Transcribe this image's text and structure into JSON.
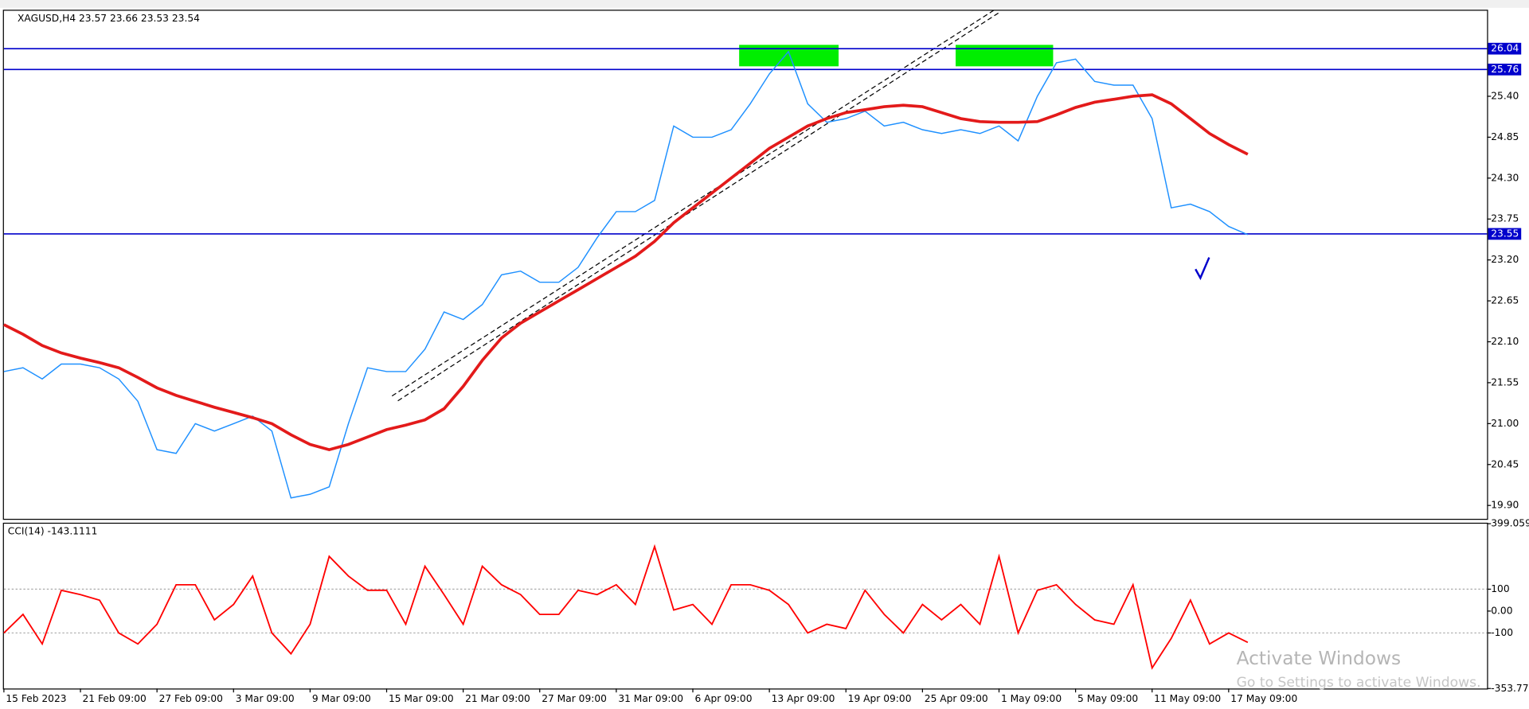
{
  "chart_data": [
    {
      "type": "line",
      "title": "XAGUSD,H4  23.57 23.66 23.53 23.54",
      "categories": [
        "15 Feb 2023",
        null,
        null,
        null,
        "21 Feb 09:00",
        null,
        null,
        null,
        "27 Feb 09:00",
        null,
        null,
        null,
        "3 Mar 09:00",
        null,
        null,
        null,
        "9 Mar 09:00",
        null,
        null,
        null,
        "15 Mar 09:00",
        null,
        null,
        null,
        "21 Mar 09:00",
        null,
        null,
        null,
        "27 Mar 09:00",
        null,
        null,
        null,
        "31 Mar 09:00",
        null,
        null,
        null,
        "6 Apr 09:00",
        null,
        null,
        null,
        "13 Apr 09:00",
        null,
        null,
        null,
        "19 Apr 09:00",
        null,
        null,
        null,
        "25 Apr 09:00",
        null,
        null,
        null,
        "1 May 09:00",
        null,
        null,
        null,
        "5 May 09:00",
        null,
        null,
        null,
        "11 May 09:00",
        null,
        null,
        null,
        "17 May 09:00",
        null
      ],
      "series": [
        {
          "color": "#1e90ff",
          "values": [
            21.7,
            21.75,
            21.6,
            21.8,
            21.8,
            21.75,
            21.6,
            21.3,
            20.65,
            20.6,
            21.0,
            20.9,
            21.0,
            21.1,
            20.9,
            20.0,
            20.05,
            20.15,
            21.0,
            21.75,
            21.7,
            21.7,
            22.0,
            22.5,
            22.4,
            22.6,
            23.0,
            23.05,
            22.9,
            22.9,
            23.1,
            23.5,
            23.85,
            23.85,
            24.0,
            25.0,
            24.85,
            24.85,
            24.95,
            25.3,
            25.7,
            26.0,
            25.3,
            25.05,
            25.1,
            25.2,
            25.0,
            25.05,
            24.95,
            24.9,
            24.95,
            24.9,
            25.0,
            24.8,
            25.4,
            25.85,
            25.9,
            25.6,
            25.55,
            25.55,
            25.1,
            23.9,
            23.95,
            23.85,
            23.65,
            23.54
          ]
        },
        {
          "color": "#e31a1a",
          "values": [
            22.33,
            22.2,
            22.05,
            21.95,
            21.88,
            21.82,
            21.75,
            21.62,
            21.48,
            21.38,
            21.3,
            21.22,
            21.15,
            21.08,
            21.0,
            20.85,
            20.72,
            20.65,
            20.72,
            20.82,
            20.92,
            20.98,
            21.05,
            21.2,
            21.5,
            21.85,
            22.15,
            22.35,
            22.5,
            22.65,
            22.8,
            22.95,
            23.1,
            23.25,
            23.45,
            23.7,
            23.9,
            24.1,
            24.3,
            24.5,
            24.7,
            24.85,
            25.0,
            25.1,
            25.18,
            25.22,
            25.26,
            25.28,
            25.26,
            25.18,
            25.1,
            25.06,
            25.05,
            25.05,
            25.06,
            25.15,
            25.25,
            25.32,
            25.36,
            25.4,
            25.42,
            25.3,
            25.1,
            24.9,
            24.75,
            24.62
          ]
        }
      ],
      "hlines": [
        26.04,
        25.76,
        23.55
      ],
      "hline_color": "#0000cc",
      "ylim": [
        19.72,
        26.55
      ],
      "yticks": [
        {
          "value": 25.4,
          "label": "25.40"
        },
        24.85,
        {
          "value": 24.3,
          "label": "24.30"
        },
        23.75,
        {
          "value": 23.2,
          "label": "23.20"
        },
        22.65,
        {
          "value": 22.1,
          "label": "22.10"
        },
        21.55,
        {
          "value": 21,
          "label": "21.00"
        },
        20.45,
        {
          "value": 19.9,
          "label": "19.90"
        }
      ]
    },
    {
      "type": "line",
      "title": "CCI(14) -143.1111",
      "series": [
        {
          "color": "#ff0000",
          "values": [
            -100,
            -15,
            -150,
            95,
            75,
            50,
            -100,
            -150,
            -60,
            120,
            120,
            -40,
            30,
            160,
            -100,
            -195,
            -60,
            250,
            160,
            95,
            95,
            -60,
            205,
            75,
            -60,
            205,
            120,
            75,
            -15,
            -15,
            95,
            75,
            120,
            30,
            295,
            5,
            30,
            -60,
            120,
            120,
            95,
            30,
            -100,
            -60,
            -80,
            95,
            -15,
            -100,
            30,
            -40,
            30,
            -60,
            250,
            -100,
            95,
            120,
            30,
            -40,
            -60,
            120,
            -260,
            -125,
            50,
            -150,
            -100,
            -143.1111
          ]
        }
      ],
      "ylim": [
        -353.774,
        399.059
      ],
      "yticks": [
        399.059,
        100,
        {
          "value": 0,
          "label": "0.00"
        },
        -100,
        -353.774
      ],
      "levels": [
        100,
        -100
      ]
    }
  ],
  "watermark": {
    "title": "Activate Windows",
    "subtitle": "Go to Settings to activate Windows."
  }
}
